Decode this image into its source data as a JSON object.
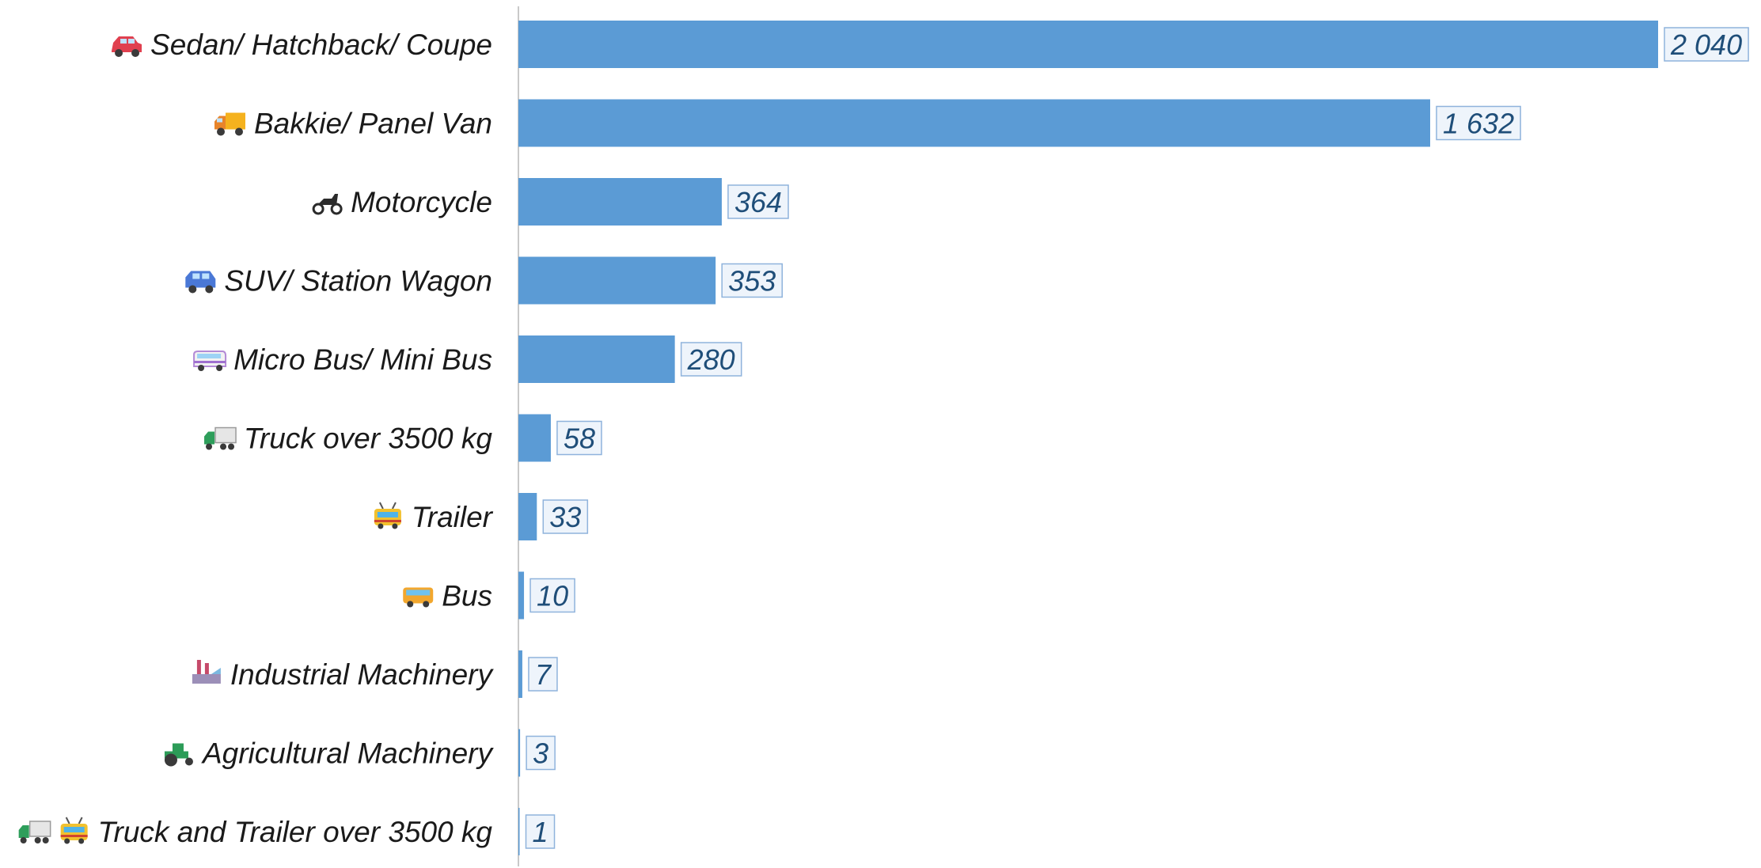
{
  "colors": {
    "bar": "#5b9bd5",
    "axis": "#c9c9c9",
    "label_box_fill": "#eef4fb",
    "label_box_stroke": "#8fb3dc",
    "value_text": "#1f4e79",
    "category_text": "#1a1a1a"
  },
  "chart_data": {
    "type": "bar",
    "orientation": "horizontal",
    "title": "",
    "xlabel": "",
    "ylabel": "",
    "grid": false,
    "xlim": [
      0,
      2040
    ],
    "categories": [
      "Sedan/ Hatchback/ Coupe",
      "Bakkie/ Panel Van",
      "Motorcycle",
      "SUV/ Station Wagon",
      "Micro Bus/ Mini Bus",
      "Truck over 3500 kg",
      "Trailer",
      "Bus",
      "Industrial Machinery",
      "Agricultural Machinery",
      "Truck and Trailer over 3500 kg"
    ],
    "category_icons": [
      [
        "car-icon"
      ],
      [
        "delivery-truck-icon"
      ],
      [
        "motor-scooter-icon"
      ],
      [
        "suv-icon"
      ],
      [
        "minibus-icon"
      ],
      [
        "articulated-lorry-icon"
      ],
      [
        "trolleybus-icon"
      ],
      [
        "bus-icon"
      ],
      [
        "factory-icon"
      ],
      [
        "tractor-icon"
      ],
      [
        "articulated-lorry-icon",
        "trolleybus-icon"
      ]
    ],
    "values": [
      2040,
      1632,
      364,
      353,
      280,
      58,
      33,
      10,
      7,
      3,
      1
    ],
    "value_labels": [
      "2 040",
      "1 632",
      "364",
      "353",
      "280",
      "58",
      "33",
      "10",
      "7",
      "3",
      "1"
    ]
  }
}
